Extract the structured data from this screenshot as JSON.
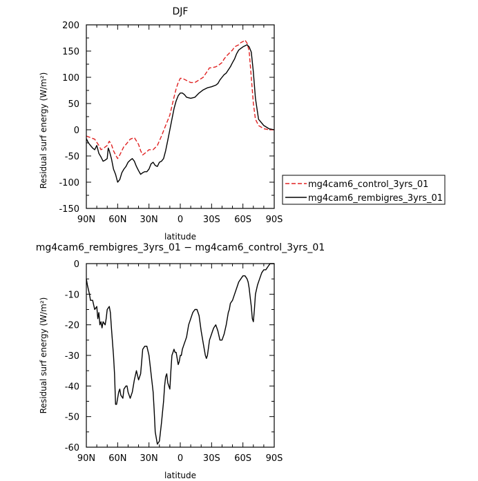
{
  "chart_data": [
    {
      "type": "line",
      "title": "DJF",
      "xlabel": "latitude",
      "ylabel": "Residual surf energy (W/m²)",
      "ylim": [
        -150,
        200
      ],
      "xlim": [
        90,
        -90
      ],
      "xticks": [
        "90N",
        "60N",
        "30N",
        "0",
        "30S",
        "60S",
        "90S"
      ],
      "yticks": [
        "200",
        "150",
        "100",
        "50",
        "0",
        "-50",
        "-100",
        "-150"
      ],
      "legend": "right",
      "series": [
        {
          "name": "mg4cam6_control_3yrs_01",
          "color": "#e02020",
          "style": "dashed",
          "x": [
            90,
            86,
            82,
            78,
            76,
            74,
            72,
            70,
            68,
            66,
            64,
            62,
            60,
            58,
            56,
            54,
            52,
            48,
            44,
            40,
            38,
            36,
            34,
            32,
            30,
            26,
            22,
            18,
            14,
            10,
            8,
            6,
            4,
            2,
            0,
            -2,
            -6,
            -10,
            -14,
            -18,
            -22,
            -26,
            -28,
            -30,
            -34,
            -36,
            -40,
            -42,
            -44,
            -48,
            -50,
            -52,
            -54,
            -56,
            -58,
            -60,
            -62,
            -64,
            -66,
            -68,
            -70,
            -72,
            -75,
            -80,
            -85,
            -90
          ],
          "y": [
            -12,
            -15,
            -18,
            -30,
            -38,
            -36,
            -33,
            -30,
            -22,
            -28,
            -40,
            -48,
            -55,
            -48,
            -40,
            -32,
            -28,
            -18,
            -15,
            -28,
            -40,
            -48,
            -45,
            -42,
            -38,
            -38,
            -30,
            -12,
            8,
            28,
            45,
            62,
            78,
            90,
            98,
            98,
            94,
            90,
            90,
            95,
            100,
            112,
            118,
            118,
            120,
            122,
            128,
            135,
            140,
            148,
            152,
            158,
            160,
            162,
            166,
            168,
            171,
            165,
            150,
            100,
            50,
            20,
            8,
            2,
            0,
            0
          ]
        },
        {
          "name": "mg4cam6_rembigres_3yrs_01",
          "color": "#000000",
          "style": "solid",
          "x": [
            90,
            88,
            86,
            84,
            82,
            80,
            78,
            76,
            74,
            72,
            70,
            69,
            68,
            66,
            64,
            62,
            60,
            58,
            56,
            54,
            52,
            50,
            48,
            46,
            44,
            42,
            40,
            38,
            36,
            34,
            32,
            30,
            28,
            26,
            24,
            22,
            20,
            18,
            16,
            14,
            12,
            10,
            8,
            6,
            4,
            2,
            0,
            -2,
            -4,
            -6,
            -10,
            -14,
            -18,
            -22,
            -26,
            -30,
            -34,
            -36,
            -38,
            -40,
            -42,
            -44,
            -48,
            -50,
            -52,
            -54,
            -56,
            -58,
            -60,
            -62,
            -64,
            -66,
            -68,
            -70,
            -72,
            -75,
            -80,
            -85,
            -90
          ],
          "y": [
            -17,
            -25,
            -30,
            -35,
            -38,
            -30,
            -45,
            -52,
            -60,
            -58,
            -55,
            -35,
            -40,
            -55,
            -75,
            -85,
            -100,
            -95,
            -82,
            -75,
            -70,
            -62,
            -58,
            -55,
            -60,
            -70,
            -78,
            -85,
            -82,
            -80,
            -80,
            -75,
            -65,
            -62,
            -68,
            -70,
            -62,
            -60,
            -55,
            -40,
            -20,
            0,
            20,
            40,
            55,
            65,
            70,
            70,
            67,
            62,
            60,
            62,
            70,
            76,
            80,
            82,
            85,
            88,
            95,
            100,
            105,
            108,
            120,
            128,
            135,
            145,
            152,
            155,
            158,
            160,
            162,
            158,
            148,
            110,
            60,
            20,
            8,
            2,
            0
          ]
        }
      ]
    },
    {
      "type": "line",
      "title": "mg4cam6_rembigres_3yrs_01 − mg4cam6_control_3yrs_01",
      "xlabel": "latitude",
      "ylabel": "Residual surf energy (W/m²)",
      "ylim": [
        -60,
        0
      ],
      "xlim": [
        90,
        -90
      ],
      "xticks": [
        "90N",
        "60N",
        "30N",
        "0",
        "30S",
        "60S",
        "90S"
      ],
      "yticks": [
        "0",
        "-10",
        "-20",
        "-30",
        "-40",
        "-50",
        "-60"
      ],
      "series": [
        {
          "color": "#000000",
          "style": "solid",
          "x": [
            90,
            89,
            87,
            86,
            84,
            82,
            80,
            79,
            78,
            77,
            76,
            75,
            74,
            72,
            71,
            70,
            68,
            67,
            66,
            64,
            63,
            62,
            61,
            60,
            59,
            58,
            57,
            55,
            54,
            52,
            51,
            50,
            48,
            46,
            44,
            42,
            40,
            38,
            37,
            36,
            34,
            32,
            30,
            28,
            26,
            25,
            24,
            22,
            20,
            18,
            16,
            15,
            14,
            13,
            12,
            10,
            9,
            8,
            6,
            5,
            4,
            2,
            1,
            0,
            -1,
            -2,
            -3,
            -4,
            -5,
            -6,
            -7,
            -8,
            -10,
            -12,
            -14,
            -16,
            -17,
            -18,
            -20,
            -22,
            -24,
            -25,
            -26,
            -28,
            -30,
            -31,
            -32,
            -34,
            -36,
            -38,
            -40,
            -42,
            -44,
            -46,
            -47,
            -48,
            -50,
            -52,
            -54,
            -56,
            -58,
            -60,
            -62,
            -64,
            -65,
            -66,
            -67,
            -68,
            -69,
            -70,
            -71,
            -72,
            -74,
            -76,
            -78,
            -80,
            -82,
            -84,
            -86,
            -88,
            -90
          ],
          "y": [
            -5,
            -7,
            -10,
            -12,
            -12,
            -15,
            -14,
            -18,
            -16,
            -20,
            -19,
            -21,
            -19,
            -20,
            -18,
            -15,
            -14,
            -16,
            -21,
            -30,
            -36,
            -46,
            -46,
            -44,
            -42,
            -41,
            -43,
            -44,
            -41,
            -40,
            -40,
            -42,
            -44,
            -42,
            -38,
            -35,
            -38,
            -36,
            -32,
            -28,
            -27,
            -27,
            -30,
            -36,
            -42,
            -48,
            -55,
            -59,
            -58,
            -52,
            -45,
            -40,
            -37,
            -36,
            -39,
            -41,
            -35,
            -30,
            -28,
            -29,
            -29,
            -33,
            -32,
            -30,
            -30,
            -28,
            -27,
            -26,
            -25,
            -24,
            -22,
            -20,
            -18,
            -16,
            -15,
            -15,
            -16,
            -17,
            -22,
            -26,
            -30,
            -31,
            -30,
            -25,
            -23,
            -22,
            -21,
            -20,
            -22,
            -25,
            -25,
            -23,
            -20,
            -16,
            -15,
            -13,
            -12,
            -10,
            -8,
            -6,
            -5,
            -4,
            -4,
            -5,
            -6,
            -8,
            -11,
            -14,
            -18,
            -19,
            -15,
            -10,
            -7,
            -5,
            -3,
            -2,
            -2,
            -1,
            0,
            0,
            0
          ]
        }
      ]
    }
  ]
}
